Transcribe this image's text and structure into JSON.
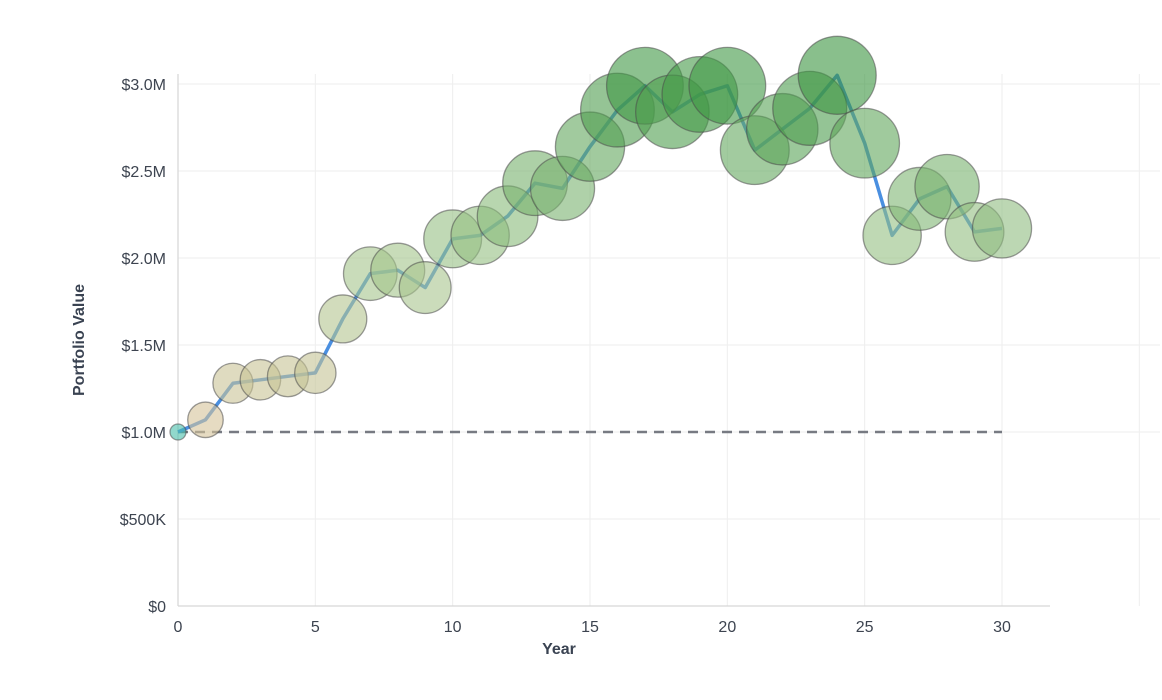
{
  "chart_data": {
    "type": "line",
    "title": "",
    "xlabel": "Year",
    "ylabel": "Portfolio Value",
    "xlim": [
      0,
      35
    ],
    "ylim": [
      0,
      3100000
    ],
    "x_ticks": [
      0,
      5,
      10,
      15,
      20,
      25,
      30
    ],
    "y_ticks": [
      {
        "value": 0,
        "label": "$0"
      },
      {
        "value": 500000,
        "label": "$500K"
      },
      {
        "value": 1000000,
        "label": "$1.0M"
      },
      {
        "value": 1500000,
        "label": "$1.5M"
      },
      {
        "value": 2000000,
        "label": "$2.0M"
      },
      {
        "value": 2500000,
        "label": "$2.5M"
      },
      {
        "value": 3000000,
        "label": "$3.0M"
      }
    ],
    "grid": true,
    "series": [
      {
        "line_color": "#4a8fe0",
        "bubble_color": "#3f9a3f",
        "x": [
          0,
          1,
          2,
          3,
          4,
          5,
          6,
          7,
          8,
          9,
          10,
          11,
          12,
          13,
          14,
          15,
          16,
          17,
          18,
          19,
          20,
          21,
          22,
          23,
          24,
          25,
          26,
          27,
          28,
          29,
          30
        ],
        "y": [
          1000000,
          1070000,
          1280000,
          1300000,
          1320000,
          1340000,
          1650000,
          1910000,
          1930000,
          1830000,
          2110000,
          2130000,
          2240000,
          2430000,
          2400000,
          2640000,
          2850000,
          2990000,
          2840000,
          2940000,
          2990000,
          2620000,
          2740000,
          2860000,
          3050000,
          2660000,
          2130000,
          2340000,
          2410000,
          2150000,
          2170000
        ]
      }
    ],
    "reference_line": {
      "y": 1000000,
      "x_start": 0,
      "x_end": 30,
      "style": "dashed",
      "color": "#777a82"
    }
  }
}
